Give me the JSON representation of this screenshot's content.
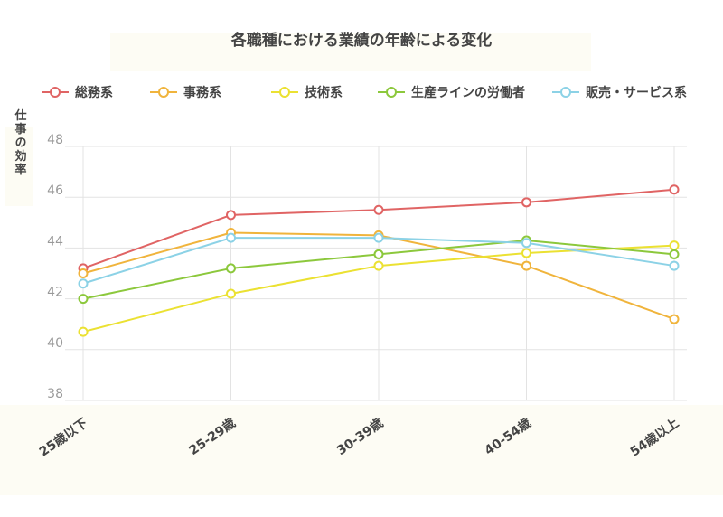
{
  "chart_data": {
    "type": "line",
    "title": "各職種における業績の年齢による変化",
    "xlabel": "",
    "ylabel": "仕事の効率",
    "categories": [
      "25歳以下",
      "25-29歳",
      "30-39歳",
      "40-54歳",
      "54歳以上"
    ],
    "ylim": [
      38,
      48
    ],
    "yticks": [
      38,
      40,
      42,
      44,
      46,
      48
    ],
    "grid": true,
    "legend_position": "top",
    "series": [
      {
        "name": "総務系",
        "color": "#e06464",
        "values": [
          43.2,
          45.3,
          45.5,
          45.8,
          46.3
        ]
      },
      {
        "name": "事務系",
        "color": "#f0b43c",
        "values": [
          43.0,
          44.6,
          44.5,
          43.3,
          41.2
        ]
      },
      {
        "name": "技術系",
        "color": "#ebe132",
        "values": [
          40.7,
          42.2,
          43.3,
          43.8,
          44.1
        ]
      },
      {
        "name": "生産ラインの労働者",
        "color": "#8cc83c",
        "values": [
          42.0,
          43.2,
          43.75,
          44.3,
          43.75
        ]
      },
      {
        "name": "販売・サービス系",
        "color": "#8cd2e6",
        "values": [
          42.6,
          44.4,
          44.4,
          44.2,
          43.3
        ]
      }
    ]
  }
}
